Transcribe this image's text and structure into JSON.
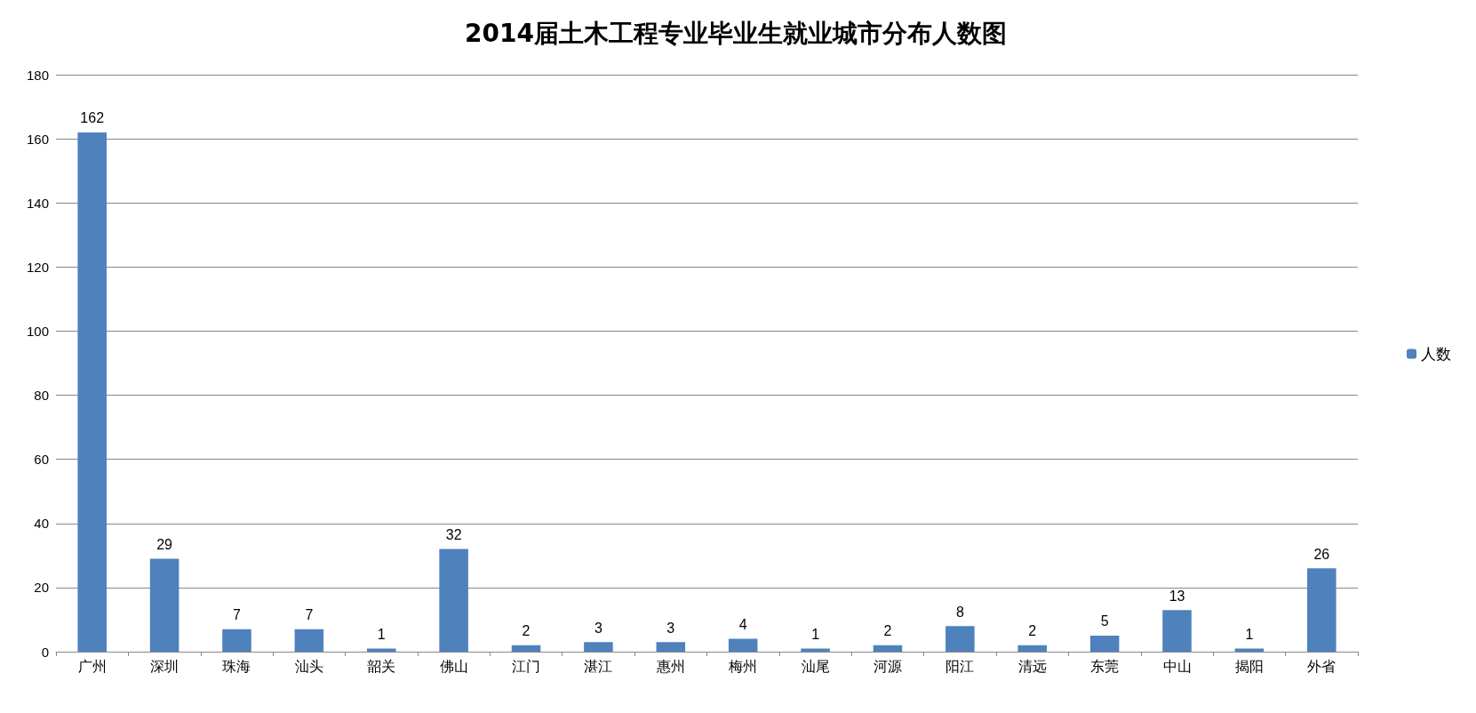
{
  "chart_data": {
    "type": "bar",
    "title": "2014届土木工程专业毕业生就业城市分布人数图",
    "categories": [
      "广州",
      "深圳",
      "珠海",
      "汕头",
      "韶关",
      "佛山",
      "江门",
      "湛江",
      "惠州",
      "梅州",
      "汕尾",
      "河源",
      "阳江",
      "清远",
      "东莞",
      "中山",
      "揭阳",
      "外省"
    ],
    "series": [
      {
        "name": "人数",
        "color": "#4f81bd",
        "values": [
          162,
          29,
          7,
          7,
          1,
          32,
          2,
          3,
          3,
          4,
          1,
          2,
          8,
          2,
          5,
          13,
          1,
          26
        ]
      }
    ],
    "ylim": [
      0,
      180
    ],
    "yticks": [
      0,
      20,
      40,
      60,
      80,
      100,
      120,
      140,
      160,
      180
    ],
    "grid": "y",
    "legend": "right",
    "data_labels": true
  }
}
